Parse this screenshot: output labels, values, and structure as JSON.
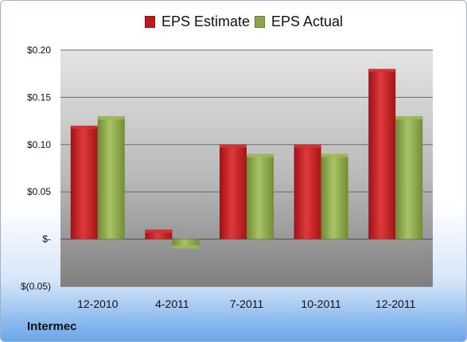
{
  "company": "Intermec",
  "colors": {
    "estimate": "#c0191c",
    "actual": "#8ba54a",
    "plot_top": "#d9d9d9",
    "plot_bottom": "#8a8a8a"
  },
  "legend": [
    {
      "label": "EPS Estimate",
      "color": "#c0191c"
    },
    {
      "label": "EPS Actual",
      "color": "#8ba54a"
    }
  ],
  "chart_data": {
    "type": "bar",
    "categories": [
      "12-2010",
      "4-2011",
      "7-2011",
      "10-2011",
      "12-2011"
    ],
    "series": [
      {
        "name": "EPS Estimate",
        "values": [
          0.12,
          0.01,
          0.1,
          0.1,
          0.18
        ]
      },
      {
        "name": "EPS Actual",
        "values": [
          0.13,
          -0.01,
          0.09,
          0.09,
          0.13
        ]
      }
    ],
    "ylim": [
      -0.05,
      0.2
    ],
    "yticks": [
      0.2,
      0.15,
      0.1,
      0.05,
      0.0,
      -0.05
    ],
    "ytick_labels": [
      "$0.20",
      "$0.15",
      "$0.10",
      "$0.05",
      "$-",
      "$(0.05)"
    ],
    "grid": true,
    "legend_position": "top"
  }
}
